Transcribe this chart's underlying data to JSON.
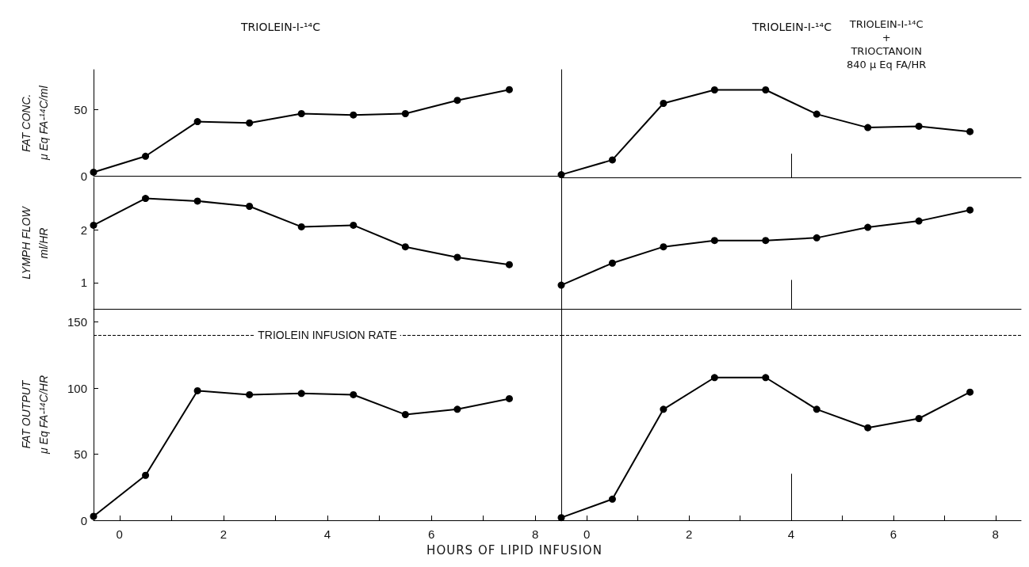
{
  "chart_data": [
    {
      "type": "line",
      "title": "TRIOLEIN-I-¹⁴C",
      "ylabel": "FAT CONC.\nμ Eq FA-¹⁴C/ml",
      "x": [
        -0.5,
        0.5,
        1.5,
        2.5,
        3.5,
        4.5,
        5.5,
        6.5,
        7.5
      ],
      "series": [
        {
          "color": "#000000",
          "values": [
            3,
            15,
            41,
            40,
            47,
            46,
            47,
            57,
            65
          ]
        }
      ],
      "xlim": [
        -0.5,
        8.5
      ],
      "ylim": [
        0,
        80
      ],
      "yticks": [
        0,
        50
      ],
      "tick_labels": "y",
      "marker": "circle"
    },
    {
      "type": "line",
      "title": "TRIOLEIN-I-¹⁴C",
      "x": [
        -0.5,
        0.5,
        1.5,
        2.5,
        3.5,
        4.5,
        5.5,
        6.5,
        7.5
      ],
      "series": [
        {
          "color": "#000000",
          "values": [
            2,
            13,
            55,
            65,
            65,
            47,
            37,
            38,
            34
          ]
        }
      ],
      "xlim": [
        -0.5,
        8.5
      ],
      "ylim": [
        0,
        80
      ],
      "tick_labels": false,
      "marker": "circle",
      "ref_lines": [
        {
          "axis": "x",
          "value": 4,
          "label": "TRIOLEIN-I-¹⁴C\n+\nTRIOCTANOIN\n840 μ Eq FA/HR"
        }
      ]
    },
    {
      "type": "line",
      "ylabel": "LYMPH FLOW\nml/HR",
      "x": [
        -0.5,
        0.5,
        1.5,
        2.5,
        3.5,
        4.5,
        5.5,
        6.5,
        7.5
      ],
      "series": [
        {
          "color": "#000000",
          "values": [
            2.09,
            2.6,
            2.55,
            2.45,
            2.06,
            2.09,
            1.68,
            1.48,
            1.34
          ]
        }
      ],
      "xlim": [
        -0.5,
        8.5
      ],
      "ylim": [
        0.5,
        3
      ],
      "yticks": [
        1,
        2
      ],
      "tick_labels": "y",
      "marker": "circle"
    },
    {
      "type": "line",
      "x": [
        -0.5,
        0.5,
        1.5,
        2.5,
        3.5,
        4.5,
        5.5,
        6.5,
        7.5
      ],
      "series": [
        {
          "color": "#000000",
          "values": [
            0.95,
            1.37,
            1.68,
            1.8,
            1.8,
            1.85,
            2.05,
            2.17,
            2.38
          ]
        }
      ],
      "xlim": [
        -0.5,
        8.5
      ],
      "ylim": [
        0.5,
        3
      ],
      "tick_labels": false,
      "marker": "circle",
      "ref_lines": [
        {
          "axis": "x",
          "value": 4
        }
      ]
    },
    {
      "type": "line",
      "ylabel": "FAT OUTPUT\nμ Eq FA-¹⁴C/HR",
      "xlabel": "HOURS OF LIPID INFUSION",
      "x": [
        -0.5,
        0.5,
        1.5,
        2.5,
        3.5,
        4.5,
        5.5,
        6.5,
        7.5
      ],
      "series": [
        {
          "color": "#000000",
          "values": [
            3,
            34,
            98,
            95,
            96,
            95,
            80,
            84,
            92
          ]
        }
      ],
      "xlim": [
        -0.5,
        8.5
      ],
      "ylim": [
        0,
        160
      ],
      "yticks": [
        0,
        50,
        100,
        150
      ],
      "xticks": [
        0,
        {
          "value": 1,
          "label": null
        },
        2,
        {
          "value": 3,
          "label": null
        },
        4,
        {
          "value": 5,
          "label": null
        },
        6,
        {
          "value": 7,
          "label": null
        },
        8
      ],
      "marker": "circle",
      "ref_lines": [
        {
          "axis": "y",
          "value": 140,
          "label": "TRIOLEIN INFUSION RATE",
          "line_style": "dashed"
        }
      ]
    },
    {
      "type": "line",
      "x": [
        -0.5,
        0.5,
        1.5,
        2.5,
        3.5,
        4.5,
        5.5,
        6.5,
        7.5
      ],
      "series": [
        {
          "color": "#000000",
          "values": [
            2,
            16,
            84,
            108,
            108,
            84,
            70,
            77,
            97
          ]
        }
      ],
      "xlim": [
        -0.5,
        8.5
      ],
      "ylim": [
        0,
        160
      ],
      "xticks": [
        0,
        {
          "value": 1,
          "label": null
        },
        2,
        {
          "value": 3,
          "label": null
        },
        4,
        {
          "value": 5,
          "label": null
        },
        6,
        {
          "value": 7,
          "label": null
        },
        8
      ],
      "tick_labels": "x",
      "marker": "circle",
      "ref_lines": [
        {
          "axis": "y",
          "value": 140,
          "line_style": "dashed"
        },
        {
          "axis": "x",
          "value": 4
        }
      ]
    }
  ]
}
